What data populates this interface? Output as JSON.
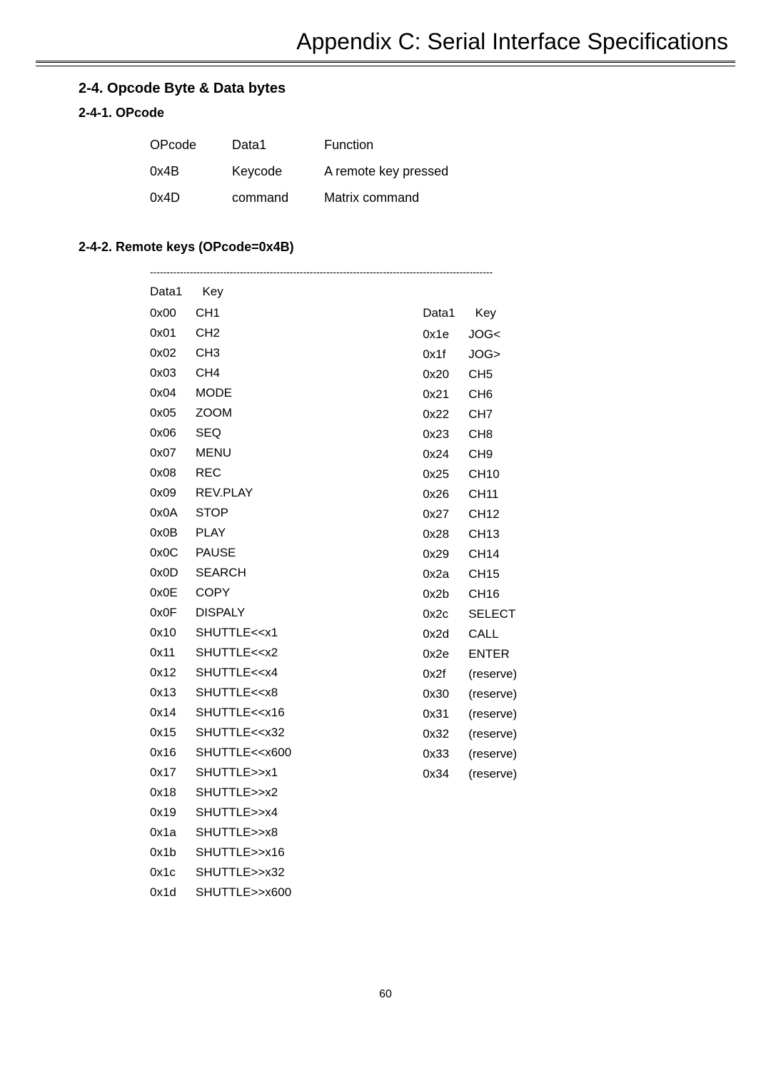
{
  "page": {
    "title": "Appendix C: Serial Interface Specifications",
    "number": "60"
  },
  "headings": {
    "section": "2-4. Opcode Byte & Data bytes",
    "sub1": "2-4-1. OPcode",
    "sub2": "2-4-2. Remote keys (OPcode=0x4B)"
  },
  "opcode_table": {
    "headers": [
      "OPcode",
      "Data1",
      "Function"
    ],
    "rows": [
      [
        "0x4B",
        "Keycode",
        "A remote key pressed"
      ],
      [
        "0x4D",
        "command",
        "Matrix command"
      ]
    ]
  },
  "remote": {
    "dashes": "-------------------------------------------------------------------------------------------------------",
    "header_left": [
      "Data1",
      "Key"
    ],
    "header_right": [
      "Data1",
      "Key"
    ],
    "left": [
      [
        "0x00",
        "CH1"
      ],
      [
        "0x01",
        "CH2"
      ],
      [
        "0x02",
        "CH3"
      ],
      [
        "0x03",
        "CH4"
      ],
      [
        "0x04",
        "MODE"
      ],
      [
        "0x05",
        "ZOOM"
      ],
      [
        "0x06",
        "SEQ"
      ],
      [
        "0x07",
        "MENU"
      ],
      [
        "0x08",
        "REC"
      ],
      [
        "0x09",
        "REV.PLAY"
      ],
      [
        "0x0A",
        "STOP"
      ],
      [
        "0x0B",
        "PLAY"
      ],
      [
        "0x0C",
        "PAUSE"
      ],
      [
        "0x0D",
        "SEARCH"
      ],
      [
        "0x0E",
        "COPY"
      ],
      [
        "0x0F",
        "DISPALY"
      ],
      [
        "0x10",
        "SHUTTLE<<x1"
      ],
      [
        "0x11",
        "SHUTTLE<<x2"
      ],
      [
        "0x12",
        "SHUTTLE<<x4"
      ],
      [
        "0x13",
        "SHUTTLE<<x8"
      ],
      [
        "0x14",
        "SHUTTLE<<x16"
      ],
      [
        "0x15",
        "SHUTTLE<<x32"
      ],
      [
        "0x16",
        "SHUTTLE<<x600"
      ],
      [
        "0x17",
        "SHUTTLE>>x1"
      ],
      [
        "0x18",
        "SHUTTLE>>x2"
      ],
      [
        "0x19",
        "SHUTTLE>>x4"
      ],
      [
        "0x1a",
        "SHUTTLE>>x8"
      ],
      [
        "0x1b",
        "SHUTTLE>>x16"
      ],
      [
        "0x1c",
        "SHUTTLE>>x32"
      ],
      [
        "0x1d",
        "SHUTTLE>>x600"
      ]
    ],
    "right": [
      [
        "0x1e",
        "JOG<"
      ],
      [
        "0x1f",
        "JOG>"
      ],
      [
        "0x20",
        "CH5"
      ],
      [
        "0x21",
        "CH6"
      ],
      [
        "0x22",
        "CH7"
      ],
      [
        "0x23",
        "CH8"
      ],
      [
        "0x24",
        "CH9"
      ],
      [
        "0x25",
        "CH10"
      ],
      [
        "0x26",
        "CH11"
      ],
      [
        "0x27",
        "CH12"
      ],
      [
        "0x28",
        "CH13"
      ],
      [
        "0x29",
        "CH14"
      ],
      [
        "0x2a",
        "CH15"
      ],
      [
        "0x2b",
        "CH16"
      ],
      [
        "0x2c",
        "SELECT"
      ],
      [
        "0x2d",
        "CALL"
      ],
      [
        "0x2e",
        "ENTER"
      ],
      [
        "0x2f",
        "(reserve)"
      ],
      [
        "0x30",
        "(reserve)"
      ],
      [
        "0x31",
        "(reserve)"
      ],
      [
        "0x32",
        "(reserve)"
      ],
      [
        "0x33",
        "(reserve)"
      ],
      [
        "0x34",
        "(reserve)"
      ]
    ]
  }
}
